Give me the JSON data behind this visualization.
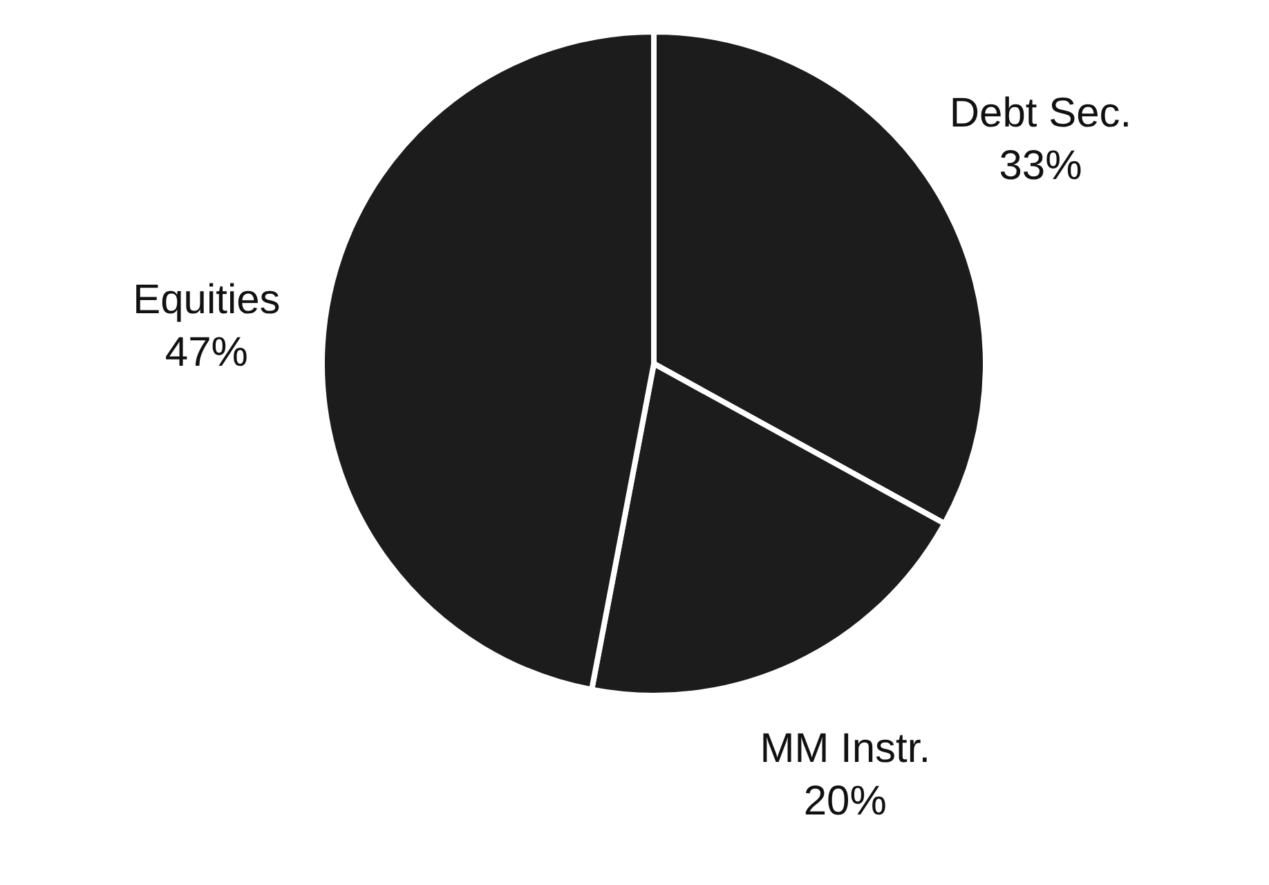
{
  "chart_data": {
    "type": "pie",
    "categories": [
      "Debt Sec.",
      "MM Instr.",
      "Equities"
    ],
    "values": [
      33,
      20,
      47
    ],
    "value_labels": [
      "33%",
      "20%",
      "47%"
    ],
    "colors": [
      "#1c1c1c",
      "#1c1c1c",
      "#1c1c1c"
    ],
    "legend": false
  }
}
